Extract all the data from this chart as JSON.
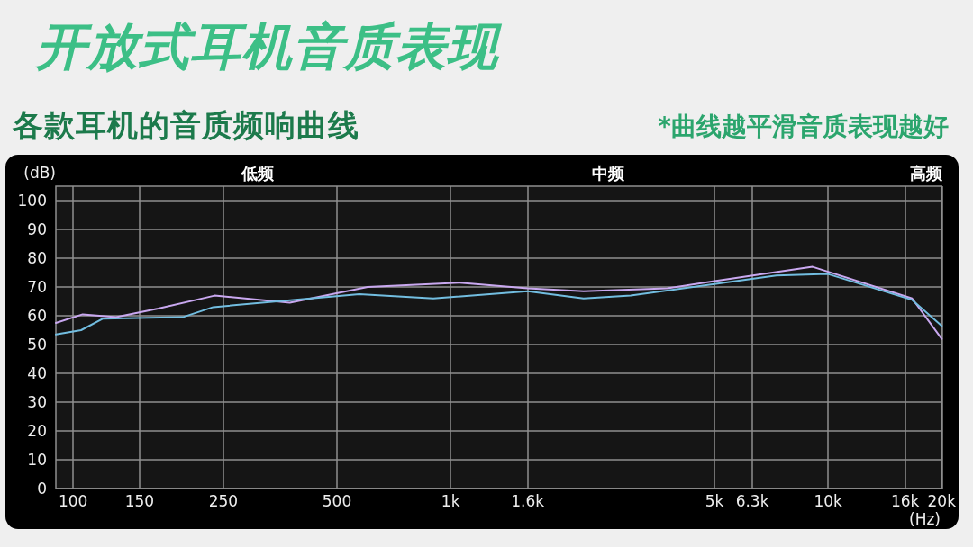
{
  "chart_data": {
    "type": "line",
    "title": "开放式耳机音质表现",
    "subtitle": "各款耳机的音质频响曲线",
    "xlabel": "(Hz)",
    "ylabel": "(dB)",
    "annotations": [
      "*曲线越平滑音质表现越好",
      "低频",
      "中频",
      "高频"
    ],
    "log": "x",
    "xlim": [
      90,
      20000
    ],
    "xticks": [
      100,
      150,
      250,
      500,
      {
        "value": 1000,
        "label": "1k"
      },
      {
        "value": 1600,
        "label": "1.6k"
      },
      {
        "value": 5000,
        "label": "5k"
      },
      {
        "value": 6300,
        "label": "6.3k"
      },
      {
        "value": 10000,
        "label": "10k"
      },
      {
        "value": 16000,
        "label": "16k"
      },
      {
        "value": 20000,
        "label": "20k"
      }
    ],
    "ylim": [
      0,
      105
    ],
    "yticks": [
      0,
      10,
      20,
      30,
      40,
      50,
      60,
      70,
      80,
      90,
      100
    ],
    "grid": true,
    "series": [
      {
        "color": "#c9a8f0",
        "x": [
          90,
          106,
          130,
          168,
          237,
          375,
          603,
          1056,
          1600,
          2250,
          3750,
          5000,
          9100,
          16700,
          20000
        ],
        "values": [
          57.5,
          60.5,
          59.5,
          62.5,
          67,
          64.5,
          70,
          71.5,
          69.5,
          68.5,
          69.5,
          72,
          77,
          66,
          52
        ]
      },
      {
        "color": "#72bde0",
        "x": [
          90,
          105,
          120,
          195,
          235,
          573,
          900,
          1600,
          2250,
          3000,
          5000,
          7300,
          10000,
          16700,
          20000
        ],
        "values": [
          53.5,
          55,
          59,
          59.5,
          63,
          67.5,
          66,
          68.5,
          66,
          67,
          71,
          74,
          74.5,
          65.5,
          56.5
        ]
      }
    ]
  }
}
